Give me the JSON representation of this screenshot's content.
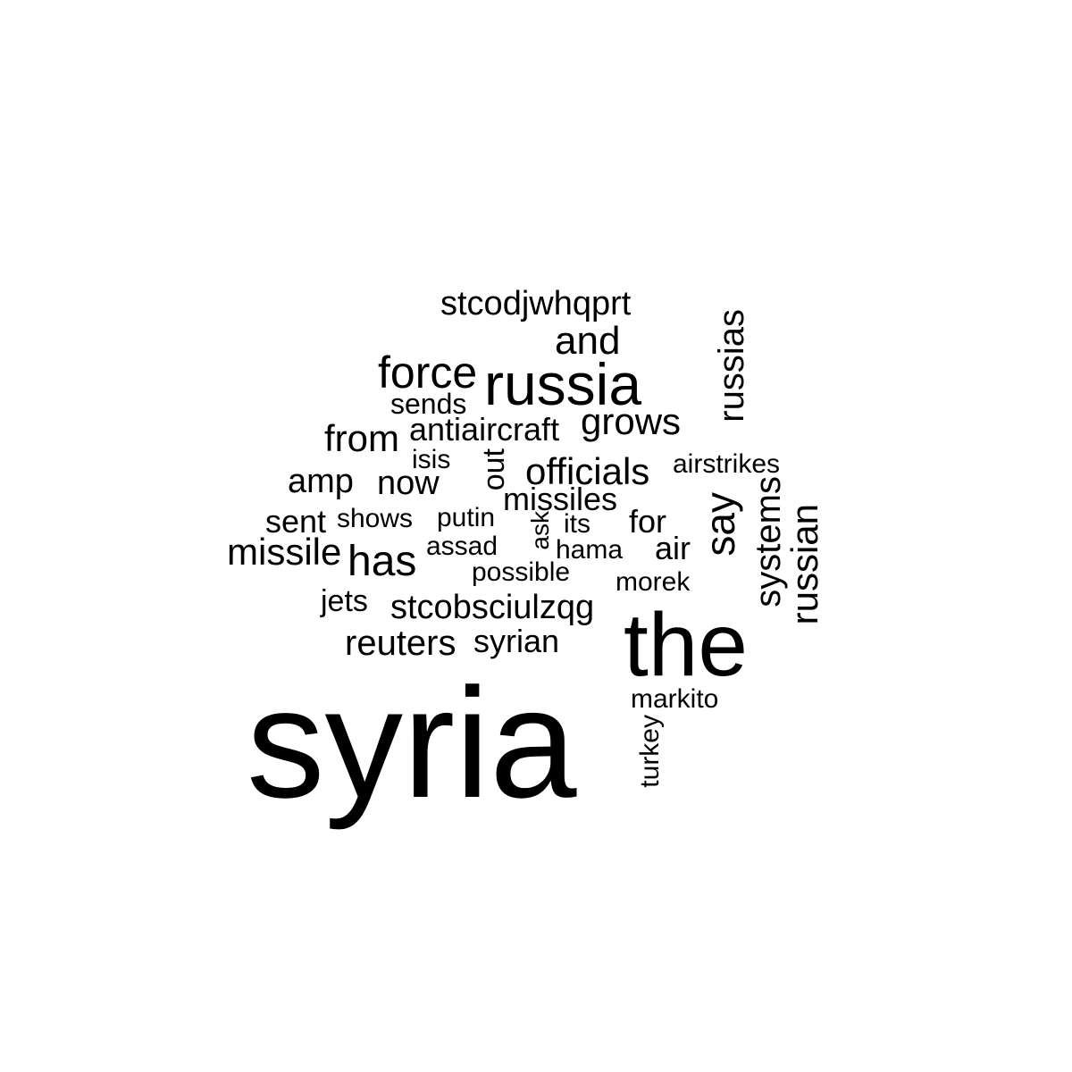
{
  "word_cloud": {
    "text_color": "#000000",
    "background_color": "#ffffff",
    "words": {
      "syria": "syria",
      "the": "the",
      "russia": "russia",
      "force": "force",
      "and": "and",
      "stcodjwhqprt": "stcodjwhqprt",
      "russias": "russias",
      "sends": "sends",
      "grows": "grows",
      "from": "from",
      "antiaircraft": "antiaircraft",
      "isis": "isis",
      "out": "out",
      "officials": "officials",
      "airstrikes": "airstrikes",
      "amp": "amp",
      "now": "now",
      "systems": "systems",
      "missiles": "missiles",
      "say": "say",
      "russian": "russian",
      "sent": "sent",
      "shows": "shows",
      "putin": "putin",
      "ask": "ask",
      "its": "its",
      "for": "for",
      "missile": "missile",
      "has": "has",
      "assad": "assad",
      "hama": "hama",
      "air": "air",
      "possible": "possible",
      "morek": "morek",
      "jets": "jets",
      "stcobsciulzqg": "stcobsciulzqg",
      "reuters": "reuters",
      "syrian": "syrian",
      "markito": "markito",
      "turkey": "turkey"
    }
  }
}
